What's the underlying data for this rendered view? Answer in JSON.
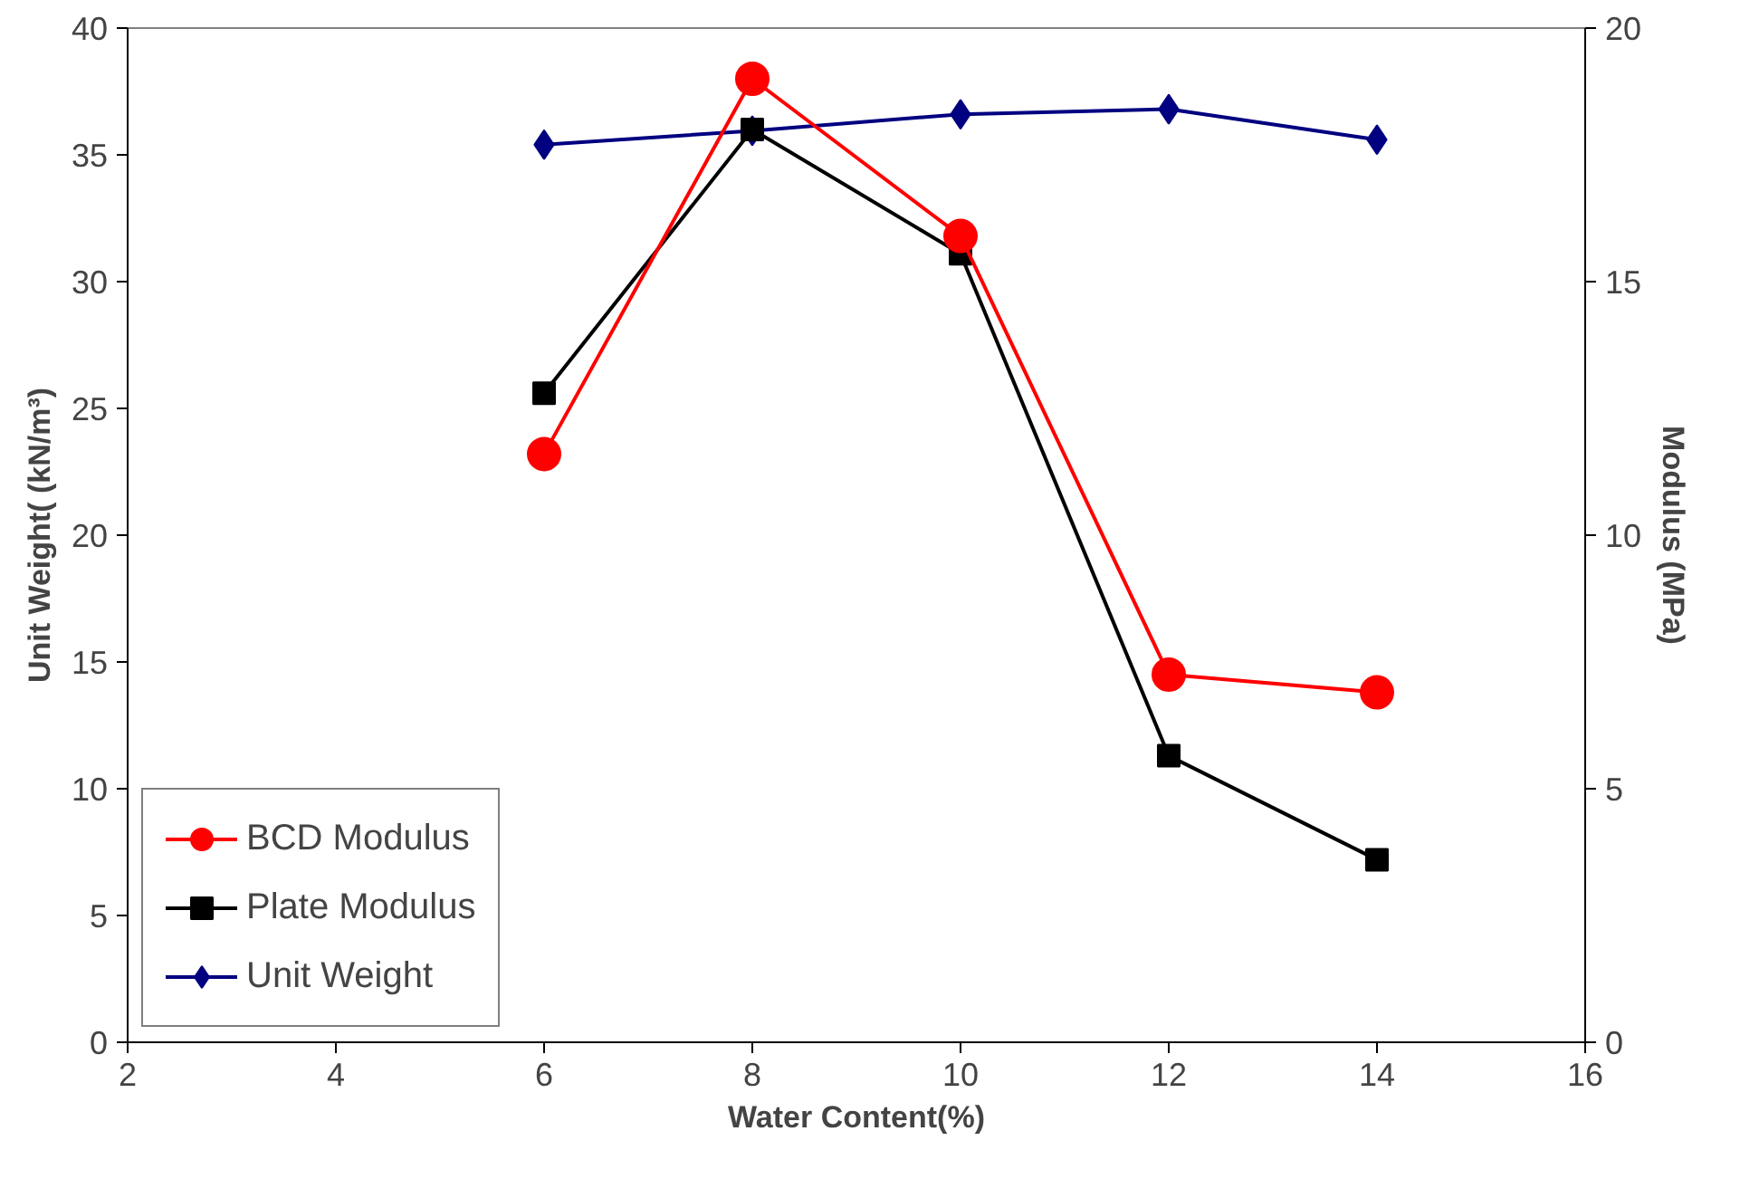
{
  "chart_data": {
    "type": "line",
    "xlabel": "Water Content(%)",
    "ylabel": "Unit Weight( (kN/m³)",
    "y2label": "Modulus (MPa)",
    "x": [
      6,
      8,
      10,
      12,
      14
    ],
    "series": [
      {
        "name": "BCD Modulus",
        "color": "#ff0000",
        "marker": "circle",
        "axis": "y2",
        "values": [
          11.6,
          19.0,
          15.9,
          7.25,
          6.9
        ]
      },
      {
        "name": "Plate Modulus",
        "color": "#000000",
        "marker": "square",
        "axis": "y2",
        "values": [
          12.8,
          18.0,
          15.55,
          5.65,
          3.6
        ]
      },
      {
        "name": "Unit Weight",
        "color": "#000080",
        "marker": "diamond",
        "values": [
          35.4,
          35.95,
          36.6,
          36.8,
          35.6
        ]
      }
    ],
    "xlim": [
      2,
      16
    ],
    "xticks": [
      2,
      4,
      6,
      8,
      10,
      12,
      14,
      16
    ],
    "ylim": [
      0,
      40
    ],
    "yticks": [
      0,
      5,
      10,
      15,
      20,
      25,
      30,
      35,
      40
    ],
    "y2lim": [
      0,
      20
    ],
    "y2ticks": [
      0,
      5,
      10,
      15,
      20
    ],
    "grid": false,
    "legend": "bottom left",
    "line_style": "solid"
  }
}
